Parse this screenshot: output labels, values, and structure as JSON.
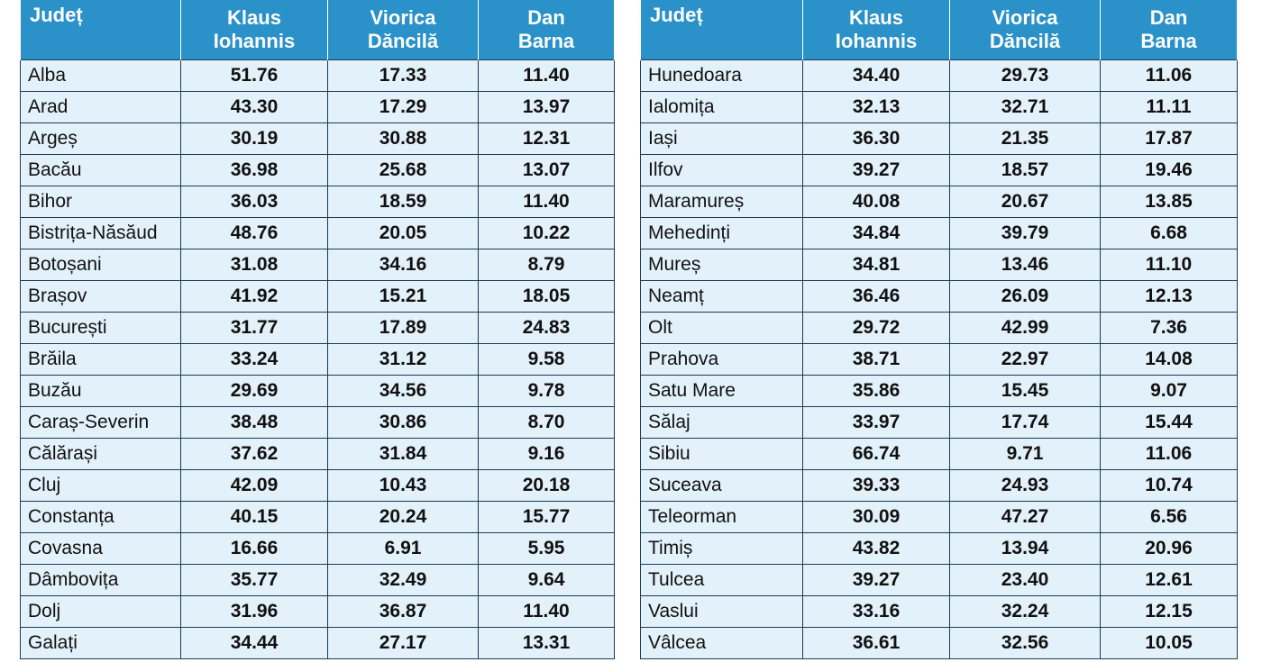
{
  "headers": {
    "county": "Județ",
    "iohannis": [
      "Klaus",
      "Iohannis"
    ],
    "dancila": [
      "Viorica",
      "Dăncilă"
    ],
    "barna": [
      "Dan",
      "Barna"
    ]
  },
  "colors": {
    "header_bg": "#2a91c9",
    "header_text": "#ffffff",
    "row_bg": "#e3f1fb",
    "grid_line": "#1d3a52"
  },
  "tables": {
    "left": [
      [
        "Alba",
        "51.76",
        "17.33",
        "11.40"
      ],
      [
        "Arad",
        "43.30",
        "17.29",
        "13.97"
      ],
      [
        "Argeș",
        "30.19",
        "30.88",
        "12.31"
      ],
      [
        "Bacău",
        "36.98",
        "25.68",
        "13.07"
      ],
      [
        "Bihor",
        "36.03",
        "18.59",
        "11.40"
      ],
      [
        "Bistrița-Năsăud",
        "48.76",
        "20.05",
        "10.22"
      ],
      [
        "Botoșani",
        "31.08",
        "34.16",
        "8.79"
      ],
      [
        "Brașov",
        "41.92",
        "15.21",
        "18.05"
      ],
      [
        "București",
        "31.77",
        "17.89",
        "24.83"
      ],
      [
        "Brăila",
        "33.24",
        "31.12",
        "9.58"
      ],
      [
        "Buzău",
        "29.69",
        "34.56",
        "9.78"
      ],
      [
        "Caraș-Severin",
        "38.48",
        "30.86",
        "8.70"
      ],
      [
        "Călărași",
        "37.62",
        "31.84",
        "9.16"
      ],
      [
        "Cluj",
        "42.09",
        "10.43",
        "20.18"
      ],
      [
        "Constanța",
        "40.15",
        "20.24",
        "15.77"
      ],
      [
        "Covasna",
        "16.66",
        "6.91",
        "5.95"
      ],
      [
        "Dâmbovița",
        "35.77",
        "32.49",
        "9.64"
      ],
      [
        "Dolj",
        "31.96",
        "36.87",
        "11.40"
      ],
      [
        "Galați",
        "34.44",
        "27.17",
        "13.31"
      ]
    ],
    "right": [
      [
        "Hunedoara",
        "34.40",
        "29.73",
        "11.06"
      ],
      [
        "Ialomița",
        "32.13",
        "32.71",
        "11.11"
      ],
      [
        "Iași",
        "36.30",
        "21.35",
        "17.87"
      ],
      [
        "Ilfov",
        "39.27",
        "18.57",
        "19.46"
      ],
      [
        "Maramureș",
        "40.08",
        "20.67",
        "13.85"
      ],
      [
        "Mehedinți",
        "34.84",
        "39.79",
        "6.68"
      ],
      [
        "Mureș",
        "34.81",
        "13.46",
        "11.10"
      ],
      [
        "Neamț",
        "36.46",
        "26.09",
        "12.13"
      ],
      [
        "Olt",
        "29.72",
        "42.99",
        "7.36"
      ],
      [
        "Prahova",
        "38.71",
        "22.97",
        "14.08"
      ],
      [
        "Satu Mare",
        "35.86",
        "15.45",
        "9.07"
      ],
      [
        "Sălaj",
        "33.97",
        "17.74",
        "15.44"
      ],
      [
        "Sibiu",
        "66.74",
        "9.71",
        "11.06"
      ],
      [
        "Suceava",
        "39.33",
        "24.93",
        "10.74"
      ],
      [
        "Teleorman",
        "30.09",
        "47.27",
        "6.56"
      ],
      [
        "Timiș",
        "43.82",
        "13.94",
        "20.96"
      ],
      [
        "Tulcea",
        "39.27",
        "23.40",
        "12.61"
      ],
      [
        "Vaslui",
        "33.16",
        "32.24",
        "12.15"
      ],
      [
        "Vâlcea",
        "36.61",
        "32.56",
        "10.05"
      ]
    ]
  }
}
